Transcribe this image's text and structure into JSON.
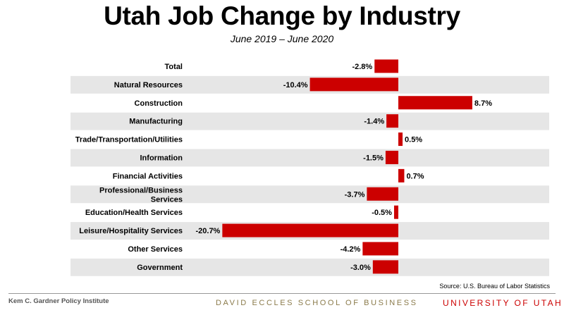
{
  "header": {
    "title": "Utah Job Change by Industry",
    "subtitle": "June 2019 – June 2020"
  },
  "source": "Source: U.S. Bureau of Labor Statistics",
  "footer": {
    "left": "Kem C. Gardner Policy Institute",
    "middle": "DAVID ECCLES SCHOOL OF BUSINESS",
    "right": "UNIVERSITY OF UTAH"
  },
  "colors": {
    "bar": "#cc0000",
    "stripe": "#e6e6e6"
  },
  "chart_data": {
    "type": "bar",
    "orientation": "horizontal",
    "categories": [
      "Total",
      "Natural Resources",
      "Construction",
      "Manufacturing",
      "Trade/Transportation/Utilities",
      "Information",
      "Financial Activities",
      "Professional/Business Services",
      "Education/Health Services",
      "Leisure/Hospitality Services",
      "Other Services",
      "Government"
    ],
    "values": [
      -2.8,
      -10.4,
      8.7,
      -1.4,
      0.5,
      -1.5,
      0.7,
      -3.7,
      -0.5,
      -20.7,
      -4.2,
      -3.0
    ],
    "value_labels": [
      "-2.8%",
      "-10.4%",
      "8.7%",
      "-1.4%",
      "0.5%",
      "-1.5%",
      "0.7%",
      "-3.7%",
      "-0.5%",
      "-20.7%",
      "-4.2%",
      "-3.0%"
    ],
    "xlim": [
      -20.7,
      8.7
    ],
    "grid": false,
    "alternating_row_shading": true
  }
}
